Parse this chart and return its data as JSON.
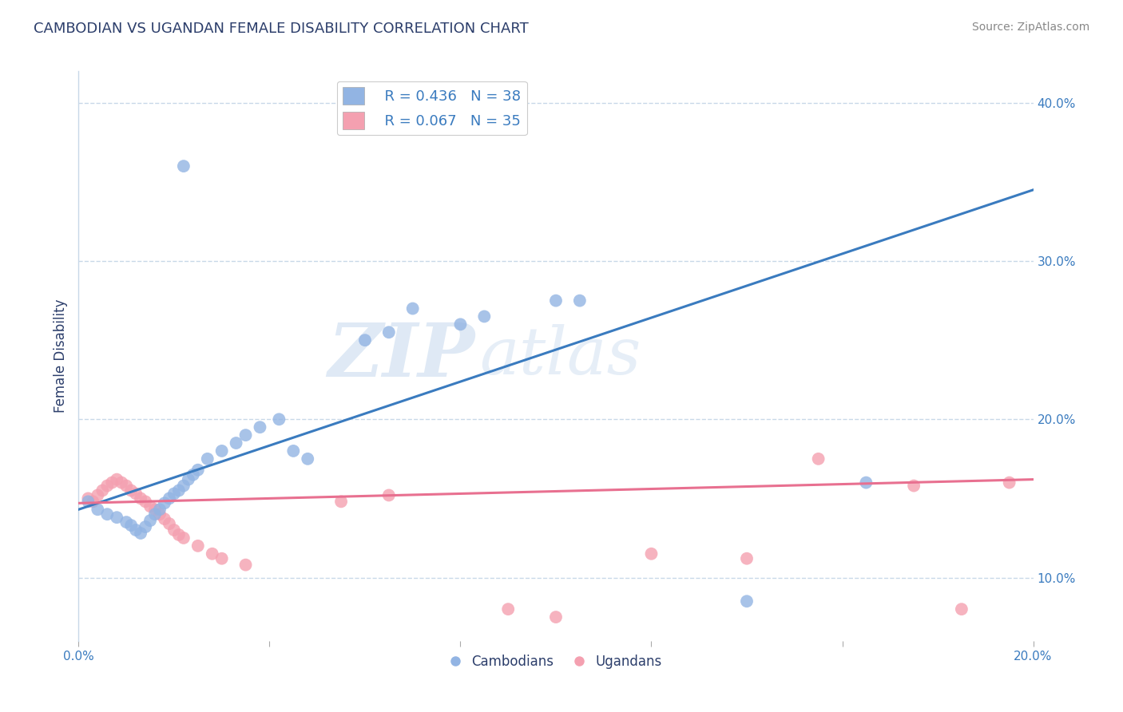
{
  "title": "CAMBODIAN VS UGANDAN FEMALE DISABILITY CORRELATION CHART",
  "source": "Source: ZipAtlas.com",
  "ylabel": "Female Disability",
  "xlabel": "",
  "watermark_zip": "ZIP",
  "watermark_atlas": "atlas",
  "xlim": [
    0.0,
    0.2
  ],
  "ylim": [
    0.06,
    0.42
  ],
  "xticks": [
    0.0,
    0.04,
    0.08,
    0.12,
    0.16,
    0.2
  ],
  "xtick_labels": [
    "0.0%",
    "",
    "",
    "",
    "",
    "20.0%"
  ],
  "yticks_right": [
    0.1,
    0.2,
    0.3,
    0.4
  ],
  "ytick_right_labels": [
    "10.0%",
    "20.0%",
    "30.0%",
    "40.0%"
  ],
  "cambodian_color": "#92b4e3",
  "ugandan_color": "#f4a0b0",
  "cambodian_line_color": "#3a7bbf",
  "ugandan_line_color": "#e87090",
  "legend_r_cambodian": "R = 0.436",
  "legend_n_cambodian": "N = 38",
  "legend_r_ugandan": "R = 0.067",
  "legend_n_ugandan": "N = 35",
  "legend_color": "#3a7bbf",
  "cambodian_scatter_x": [
    0.002,
    0.004,
    0.006,
    0.008,
    0.01,
    0.011,
    0.012,
    0.013,
    0.014,
    0.015,
    0.016,
    0.017,
    0.018,
    0.019,
    0.02,
    0.021,
    0.022,
    0.023,
    0.024,
    0.025,
    0.027,
    0.03,
    0.033,
    0.035,
    0.038,
    0.042,
    0.045,
    0.048,
    0.022,
    0.06,
    0.065,
    0.07,
    0.08,
    0.085,
    0.1,
    0.105,
    0.14,
    0.165
  ],
  "cambodian_scatter_y": [
    0.148,
    0.143,
    0.14,
    0.138,
    0.135,
    0.133,
    0.13,
    0.128,
    0.132,
    0.136,
    0.14,
    0.143,
    0.147,
    0.15,
    0.153,
    0.155,
    0.158,
    0.162,
    0.165,
    0.168,
    0.175,
    0.18,
    0.185,
    0.19,
    0.195,
    0.2,
    0.18,
    0.175,
    0.36,
    0.25,
    0.255,
    0.27,
    0.26,
    0.265,
    0.275,
    0.275,
    0.085,
    0.16
  ],
  "ugandan_scatter_x": [
    0.002,
    0.003,
    0.004,
    0.005,
    0.006,
    0.007,
    0.008,
    0.009,
    0.01,
    0.011,
    0.012,
    0.013,
    0.014,
    0.015,
    0.016,
    0.017,
    0.018,
    0.019,
    0.02,
    0.021,
    0.022,
    0.025,
    0.028,
    0.03,
    0.035,
    0.055,
    0.065,
    0.09,
    0.1,
    0.12,
    0.14,
    0.155,
    0.175,
    0.185,
    0.195
  ],
  "ugandan_scatter_y": [
    0.15,
    0.148,
    0.152,
    0.155,
    0.158,
    0.16,
    0.162,
    0.16,
    0.158,
    0.155,
    0.153,
    0.15,
    0.148,
    0.145,
    0.143,
    0.14,
    0.137,
    0.134,
    0.13,
    0.127,
    0.125,
    0.12,
    0.115,
    0.112,
    0.108,
    0.148,
    0.152,
    0.08,
    0.075,
    0.115,
    0.112,
    0.175,
    0.158,
    0.08,
    0.16
  ],
  "cambodian_line_x": [
    0.0,
    0.2
  ],
  "cambodian_line_y": [
    0.143,
    0.345
  ],
  "ugandan_line_x": [
    0.0,
    0.2
  ],
  "ugandan_line_y": [
    0.147,
    0.162
  ],
  "background_color": "#ffffff",
  "grid_color": "#c8d8e8",
  "title_color": "#2c3e6b",
  "axis_label_color": "#2c3e6b",
  "tick_label_color": "#3a7bbf"
}
